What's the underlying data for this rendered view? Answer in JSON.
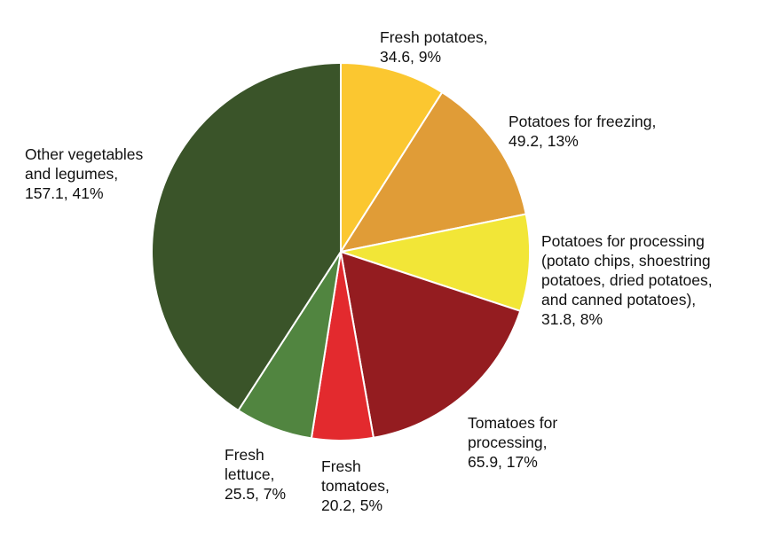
{
  "chart_data": {
    "type": "pie",
    "start_angle_deg": 0,
    "direction": "clockwise",
    "slices": [
      {
        "label_lines": [
          "Fresh potatoes,",
          "34.6, 9%"
        ],
        "value": 34.6,
        "percent": 9,
        "color": "#fbc730"
      },
      {
        "label_lines": [
          "Potatoes for freezing,",
          "49.2, 13%"
        ],
        "value": 49.2,
        "percent": 13,
        "color": "#e09c37"
      },
      {
        "label_lines": [
          "Potatoes for processing",
          "(potato chips, shoestring",
          "potatoes, dried potatoes,",
          "and canned potatoes),",
          "31.8, 8%"
        ],
        "value": 31.8,
        "percent": 8,
        "color": "#f2e637"
      },
      {
        "label_lines": [
          "Tomatoes for",
          "processing,",
          "65.9, 17%"
        ],
        "value": 65.9,
        "percent": 17,
        "color": "#941c20"
      },
      {
        "label_lines": [
          "Fresh",
          "tomatoes,",
          "20.2, 5%"
        ],
        "value": 20.2,
        "percent": 5,
        "color": "#e32a2e"
      },
      {
        "label_lines": [
          "Fresh",
          "lettuce,",
          "25.5, 7%"
        ],
        "value": 25.5,
        "percent": 7,
        "color": "#518540"
      },
      {
        "label_lines": [
          "Other vegetables",
          "and legumes,",
          "157.1, 41%"
        ],
        "value": 157.1,
        "percent": 41,
        "color": "#3a5429"
      }
    ]
  }
}
